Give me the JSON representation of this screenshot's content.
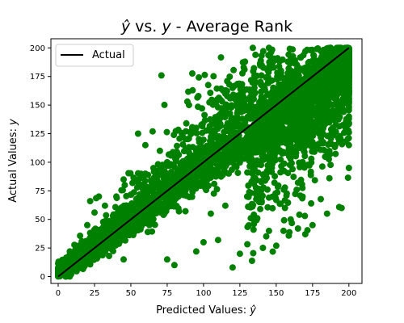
{
  "chart_data": {
    "type": "scatter",
    "title_parts": {
      "yhat": "ŷ",
      "mid": " vs. ",
      "y": "y",
      "rest": " - Average Rank"
    },
    "xlabel_parts": {
      "text": "Predicted Values: ",
      "sym": "ŷ"
    },
    "ylabel_parts": {
      "text": "Actual Values: ",
      "sym": "y"
    },
    "xlim": [
      -5,
      209
    ],
    "ylim": [
      -6,
      208
    ],
    "xticks": [
      0,
      25,
      50,
      75,
      100,
      125,
      150,
      175,
      200
    ],
    "yticks": [
      0,
      25,
      50,
      75,
      100,
      125,
      150,
      175,
      200
    ],
    "grid": false,
    "legend": {
      "location": "upper-left",
      "entries": [
        "Actual"
      ]
    },
    "colors": {
      "points": "#008000",
      "line": "#000000"
    },
    "reference_line": {
      "name": "Actual",
      "from": [
        0,
        0
      ],
      "to": [
        200,
        200
      ]
    },
    "point_cloud": {
      "description_free": true,
      "x_range": [
        0,
        200
      ],
      "y_range": [
        0,
        200
      ],
      "spread_rule": "points spread around y = x, widest spread near x ≈ 150–200"
    },
    "outliers": [
      [
        2,
        6
      ],
      [
        5,
        12
      ],
      [
        8,
        22
      ],
      [
        12,
        24
      ],
      [
        20,
        45
      ],
      [
        22,
        66
      ],
      [
        25,
        56
      ],
      [
        28,
        70
      ],
      [
        40,
        70
      ],
      [
        45,
        85
      ],
      [
        55,
        125
      ],
      [
        60,
        115
      ],
      [
        60,
        90
      ],
      [
        65,
        127
      ],
      [
        70,
        110
      ],
      [
        75,
        100
      ],
      [
        80,
        108
      ],
      [
        85,
        85
      ],
      [
        90,
        150
      ],
      [
        95,
        130
      ],
      [
        110,
        140
      ],
      [
        115,
        160
      ],
      [
        120,
        165
      ],
      [
        135,
        165
      ],
      [
        140,
        185
      ],
      [
        145,
        200
      ],
      [
        150,
        190
      ],
      [
        75,
        15
      ],
      [
        80,
        10
      ],
      [
        95,
        22
      ],
      [
        100,
        30
      ],
      [
        110,
        32
      ],
      [
        120,
        8
      ],
      [
        125,
        20
      ],
      [
        135,
        48
      ],
      [
        145,
        40
      ],
      [
        150,
        27
      ],
      [
        155,
        40
      ],
      [
        160,
        50
      ],
      [
        165,
        42
      ],
      [
        170,
        37
      ],
      [
        175,
        45
      ],
      [
        185,
        55
      ],
      [
        195,
        60
      ],
      [
        200,
        95
      ],
      [
        200,
        115
      ],
      [
        200,
        140
      ],
      [
        195,
        175
      ],
      [
        200,
        190
      ],
      [
        180,
        135
      ],
      [
        190,
        160
      ],
      [
        160,
        110
      ],
      [
        170,
        125
      ],
      [
        105,
        55
      ],
      [
        115,
        62
      ],
      [
        130,
        70
      ],
      [
        140,
        65
      ],
      [
        45,
        15
      ],
      [
        35,
        18
      ],
      [
        30,
        25
      ]
    ]
  }
}
